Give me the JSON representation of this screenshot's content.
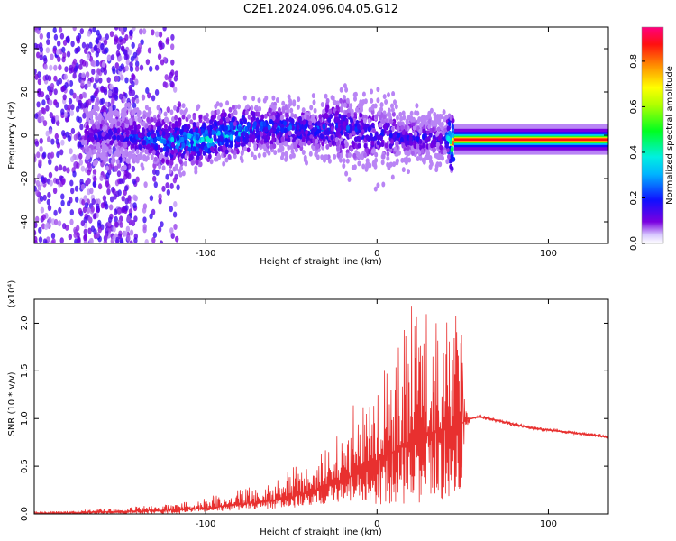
{
  "title": "C2E1.2024.096.04.05.G12",
  "colors": {
    "snr_line": "#e8302f",
    "spectrogram_low": "#7a00e0",
    "spectrogram_mid": "#00e6ff",
    "spectrogram_high": "#e8002e"
  },
  "chart_data": [
    {
      "type": "heatmap",
      "title": "C2E1.2024.096.04.05.G12",
      "xlabel": "Height of straight line (km)",
      "ylabel": "Frequency (Hz)",
      "xlim": [
        -200,
        135
      ],
      "ylim": [
        -50,
        50
      ],
      "x_ticks": [
        -100,
        0,
        100
      ],
      "y_ticks": [
        -40,
        -20,
        0,
        20,
        40
      ],
      "colorbar": {
        "label": "Normalized spectral amplitude",
        "range": [
          0.0,
          0.95
        ],
        "ticks": [
          0.0,
          0.2,
          0.4,
          0.6,
          0.8
        ],
        "colormap": "rainbow (violet-blue-cyan-green-yellow-orange-red-magenta)"
      },
      "ridge": {
        "description": "central frequency ridge",
        "x": [
          -200,
          -150,
          -120,
          -100,
          -80,
          -60,
          -40,
          -20,
          0,
          20,
          40,
          45,
          60,
          80,
          100,
          120,
          135
        ],
        "freq_hz": [
          0,
          0,
          -3,
          -2,
          2,
          4,
          2,
          4,
          0,
          -1,
          -2,
          -3,
          -2,
          -2,
          -2,
          -2,
          -2
        ],
        "amplitude": [
          0.12,
          0.15,
          0.3,
          0.35,
          0.3,
          0.22,
          0.2,
          0.18,
          0.15,
          0.15,
          0.15,
          0.85,
          0.85,
          0.85,
          0.85,
          0.85,
          0.85
        ]
      }
    },
    {
      "type": "line",
      "xlabel": "Height of straight line (km)",
      "ylabel": "SNR (10 * v/v)",
      "y_scale_label": "(x10⁴)",
      "xlim": [
        -200,
        135
      ],
      "ylim": [
        0,
        2.25
      ],
      "x_ticks": [
        -100,
        0,
        100
      ],
      "y_ticks": [
        0.0,
        0.5,
        1.0,
        1.5,
        2.0
      ],
      "series": [
        {
          "x": [
            -200,
            -180,
            -160,
            -140,
            -120,
            -100,
            -90,
            -80,
            -70,
            -60,
            -50,
            -40,
            -30,
            -20,
            -10,
            0,
            10,
            20,
            30,
            40,
            50,
            52,
            55,
            60,
            70,
            80,
            90,
            100,
            110,
            120,
            130,
            135
          ],
          "y_envelope_max": [
            0.03,
            0.03,
            0.06,
            0.08,
            0.1,
            0.18,
            0.22,
            0.28,
            0.3,
            0.32,
            0.5,
            0.5,
            0.7,
            0.9,
            1.3,
            1.5,
            1.7,
            2.25,
            2.1,
            2.2,
            2.0,
            1.4,
            1.0,
            1.02,
            1.0,
            0.95,
            0.92,
            0.9,
            0.88,
            0.86,
            0.85,
            0.82
          ],
          "y_envelope_min": [
            0.0,
            0.0,
            0.0,
            0.0,
            0.0,
            0.02,
            0.03,
            0.04,
            0.05,
            0.05,
            0.06,
            0.08,
            0.1,
            0.12,
            0.15,
            0.1,
            0.1,
            0.1,
            0.1,
            0.15,
            0.2,
            0.95,
            0.98,
            0.95,
            0.92,
            0.88,
            0.85,
            0.84,
            0.82,
            0.8,
            0.78,
            0.76
          ],
          "y_trend": [
            0.01,
            0.01,
            0.02,
            0.03,
            0.04,
            0.06,
            0.08,
            0.1,
            0.12,
            0.15,
            0.18,
            0.22,
            0.28,
            0.35,
            0.45,
            0.55,
            0.65,
            0.75,
            0.85,
            0.9,
            0.95,
            1.0,
            1.0,
            1.02,
            0.98,
            0.94,
            0.9,
            0.88,
            0.86,
            0.84,
            0.82,
            0.8
          ]
        }
      ]
    }
  ]
}
